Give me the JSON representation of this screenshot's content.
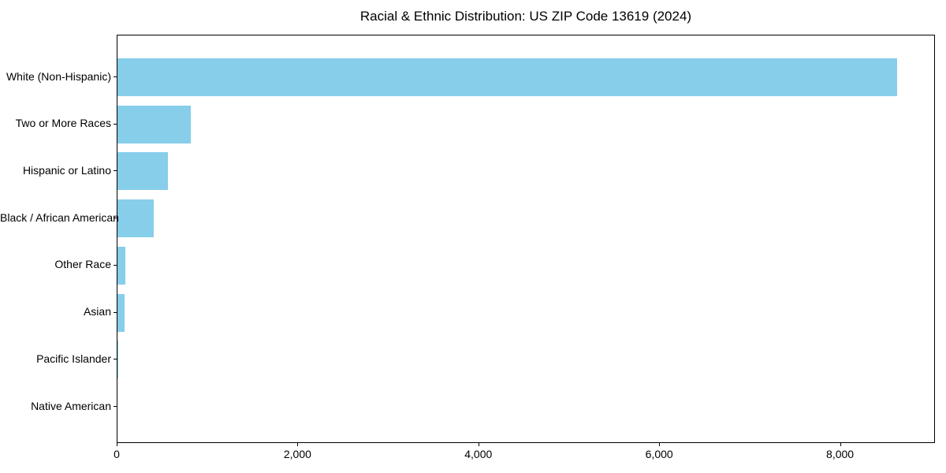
{
  "chart_data": {
    "type": "bar",
    "orientation": "horizontal",
    "title": "Racial & Ethnic Distribution: US ZIP Code 13619 (2024)",
    "categories": [
      "White (Non-Hispanic)",
      "Two or More Races",
      "Hispanic or Latino",
      "Black / African American",
      "Other Race",
      "Asian",
      "Pacific Islander",
      "Native American"
    ],
    "values": [
      8620,
      810,
      560,
      400,
      90,
      75,
      9,
      0
    ],
    "xlabel": "",
    "ylabel": "",
    "xlim": [
      0,
      9050
    ],
    "xticks": [
      {
        "value": 0,
        "label": "0"
      },
      {
        "value": 2000,
        "label": "2,000"
      },
      {
        "value": 4000,
        "label": "4,000"
      },
      {
        "value": 6000,
        "label": "6,000"
      },
      {
        "value": 8000,
        "label": "8,000"
      }
    ],
    "bar_color": "#87CEEB",
    "axis_color": "#000000",
    "background_color": "#ffffff",
    "grid": false,
    "legend": null
  }
}
